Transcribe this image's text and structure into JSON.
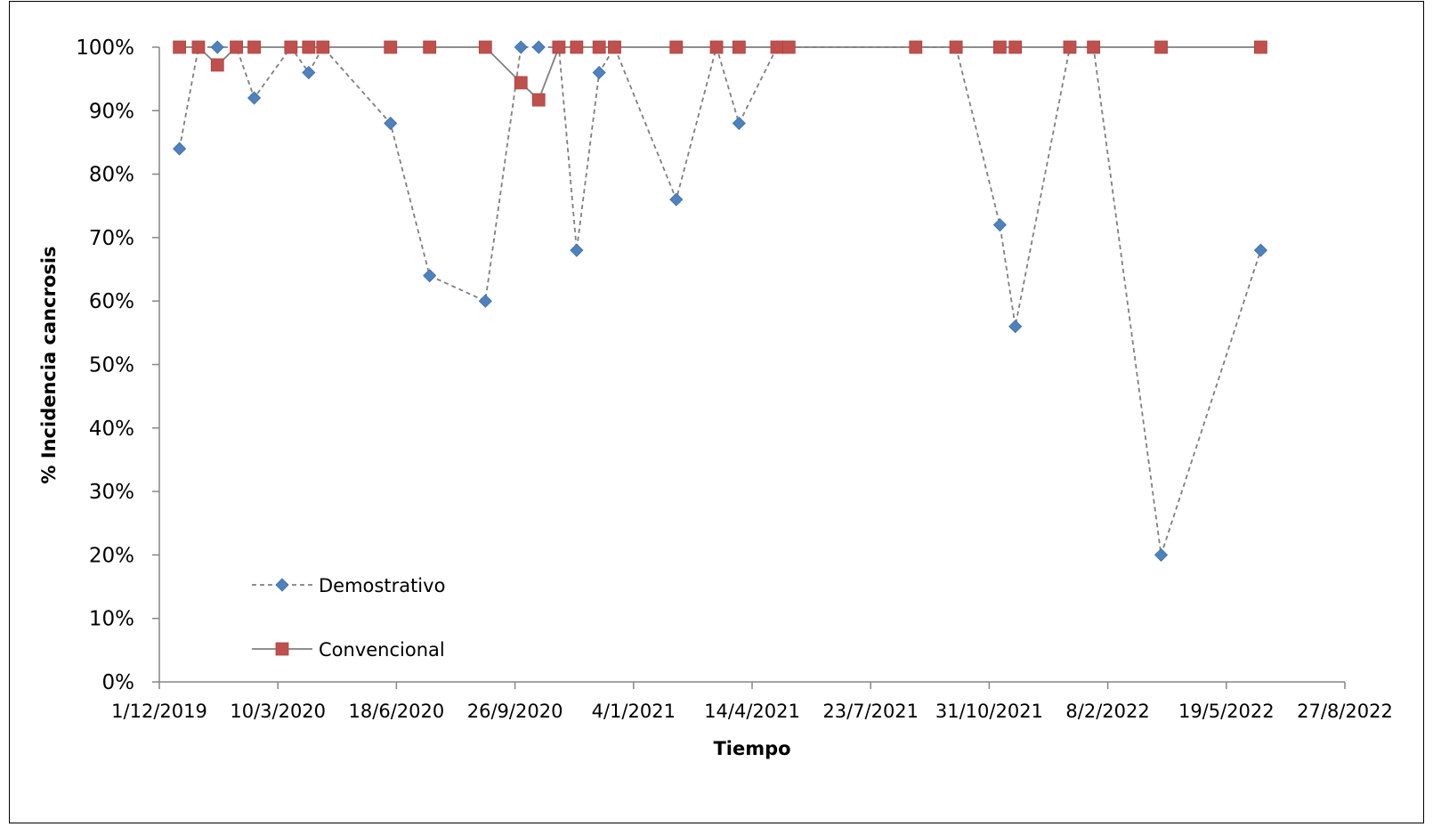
{
  "chart_data": {
    "type": "line",
    "title": "",
    "xlabel": "Tiempo",
    "ylabel": "% Incidencia cancrosis",
    "y_ticks": [
      "0%",
      "10%",
      "20%",
      "30%",
      "40%",
      "50%",
      "60%",
      "70%",
      "80%",
      "90%",
      "100%"
    ],
    "ylim": [
      0,
      100
    ],
    "x_ticks": [
      "1/12/2019",
      "10/3/2020",
      "18/6/2020",
      "26/9/2020",
      "4/1/2021",
      "14/4/2021",
      "23/7/2021",
      "31/10/2021",
      "8/2/2022",
      "19/5/2022",
      "27/8/2022"
    ],
    "xlim": [
      "2019-12-01",
      "2022-08-27"
    ],
    "grid": false,
    "legend_position": "bottom-left",
    "series": [
      {
        "name": "Demostrativo",
        "color": "#4f81bd",
        "line_color": "#7f7f7f",
        "line_style": "dashed",
        "marker": "diamond",
        "points": [
          [
            "2019-12-18",
            84
          ],
          [
            "2020-01-03",
            100
          ],
          [
            "2020-01-19",
            100
          ],
          [
            "2020-02-04",
            100
          ],
          [
            "2020-02-19",
            92
          ],
          [
            "2020-03-21",
            100
          ],
          [
            "2020-04-05",
            96
          ],
          [
            "2020-04-17",
            100
          ],
          [
            "2020-06-13",
            88
          ],
          [
            "2020-07-16",
            64
          ],
          [
            "2020-09-01",
            60
          ],
          [
            "2020-10-01",
            100
          ],
          [
            "2020-10-16",
            100
          ],
          [
            "2020-11-02",
            100
          ],
          [
            "2020-11-17",
            68
          ],
          [
            "2020-12-06",
            96
          ],
          [
            "2020-12-19",
            100
          ],
          [
            "2021-02-09",
            76
          ],
          [
            "2021-03-15",
            100
          ],
          [
            "2021-04-03",
            88
          ],
          [
            "2021-05-05",
            100
          ],
          [
            "2021-05-15",
            100
          ],
          [
            "2021-08-30",
            100
          ],
          [
            "2021-10-03",
            100
          ],
          [
            "2021-11-09",
            72
          ],
          [
            "2021-11-22",
            56
          ],
          [
            "2022-01-07",
            100
          ],
          [
            "2022-01-27",
            100
          ],
          [
            "2022-03-25",
            20
          ],
          [
            "2022-06-17",
            68
          ]
        ]
      },
      {
        "name": "Convencional",
        "color": "#c0504d",
        "line_color": "#7f7f7f",
        "line_style": "solid",
        "marker": "square",
        "points": [
          [
            "2019-12-18",
            100
          ],
          [
            "2020-01-03",
            100
          ],
          [
            "2020-01-19",
            97.2
          ],
          [
            "2020-02-04",
            100
          ],
          [
            "2020-02-19",
            100
          ],
          [
            "2020-03-21",
            100
          ],
          [
            "2020-04-05",
            100
          ],
          [
            "2020-04-17",
            100
          ],
          [
            "2020-06-13",
            100
          ],
          [
            "2020-07-16",
            100
          ],
          [
            "2020-09-01",
            100
          ],
          [
            "2020-10-01",
            94.4
          ],
          [
            "2020-10-16",
            91.7
          ],
          [
            "2020-11-02",
            100
          ],
          [
            "2020-11-17",
            100
          ],
          [
            "2020-12-06",
            100
          ],
          [
            "2020-12-19",
            100
          ],
          [
            "2021-02-09",
            100
          ],
          [
            "2021-03-15",
            100
          ],
          [
            "2021-04-03",
            100
          ],
          [
            "2021-05-05",
            100
          ],
          [
            "2021-05-15",
            100
          ],
          [
            "2021-08-30",
            100
          ],
          [
            "2021-10-03",
            100
          ],
          [
            "2021-11-09",
            100
          ],
          [
            "2021-11-22",
            100
          ],
          [
            "2022-01-07",
            100
          ],
          [
            "2022-01-27",
            100
          ],
          [
            "2022-03-25",
            100
          ],
          [
            "2022-06-17",
            100
          ]
        ]
      }
    ]
  }
}
